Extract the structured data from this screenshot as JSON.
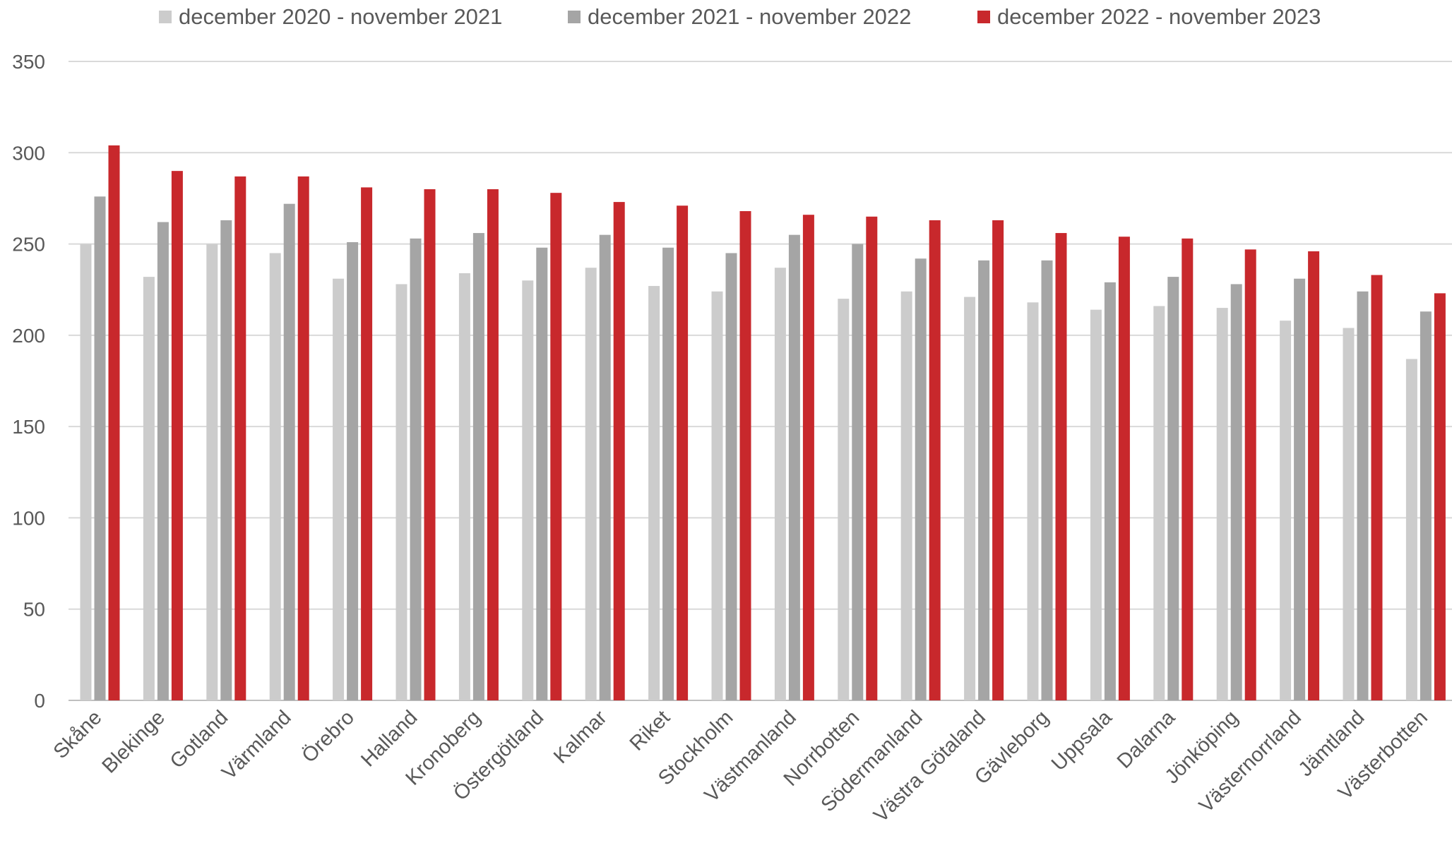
{
  "chart_data": {
    "type": "bar",
    "categories": [
      "Skåne",
      "Blekinge",
      "Gotland",
      "Värmland",
      "Örebro",
      "Halland",
      "Kronoberg",
      "Östergötland",
      "Kalmar",
      "Riket",
      "Stockholm",
      "Västmanland",
      "Norrbotten",
      "Södermanland",
      "Västra Götaland",
      "Gävleborg",
      "Uppsala",
      "Dalarna",
      "Jönköping",
      "Västernorrland",
      "Jämtland",
      "Västerbotten"
    ],
    "series": [
      {
        "name": "december 2020 - november 2021",
        "color": "#cccccc",
        "values": [
          250,
          232,
          250,
          245,
          231,
          228,
          234,
          230,
          237,
          227,
          224,
          237,
          220,
          224,
          221,
          218,
          214,
          216,
          215,
          208,
          204,
          187
        ]
      },
      {
        "name": "december 2021 - november 2022",
        "color": "#a5a5a5",
        "values": [
          276,
          262,
          263,
          272,
          251,
          253,
          256,
          248,
          255,
          248,
          245,
          255,
          250,
          242,
          241,
          241,
          229,
          232,
          228,
          231,
          224,
          213
        ]
      },
      {
        "name": "december 2022 - november 2023",
        "color": "#c8282c",
        "values": [
          304,
          290,
          287,
          287,
          281,
          280,
          280,
          278,
          273,
          271,
          268,
          266,
          265,
          263,
          263,
          256,
          254,
          253,
          247,
          246,
          233,
          223
        ]
      }
    ],
    "ylim": [
      0,
      350
    ],
    "yticks": [
      0,
      50,
      100,
      150,
      200,
      250,
      300,
      350
    ],
    "grid": true,
    "legend_position": "top",
    "title": "",
    "xlabel": "",
    "ylabel": ""
  }
}
